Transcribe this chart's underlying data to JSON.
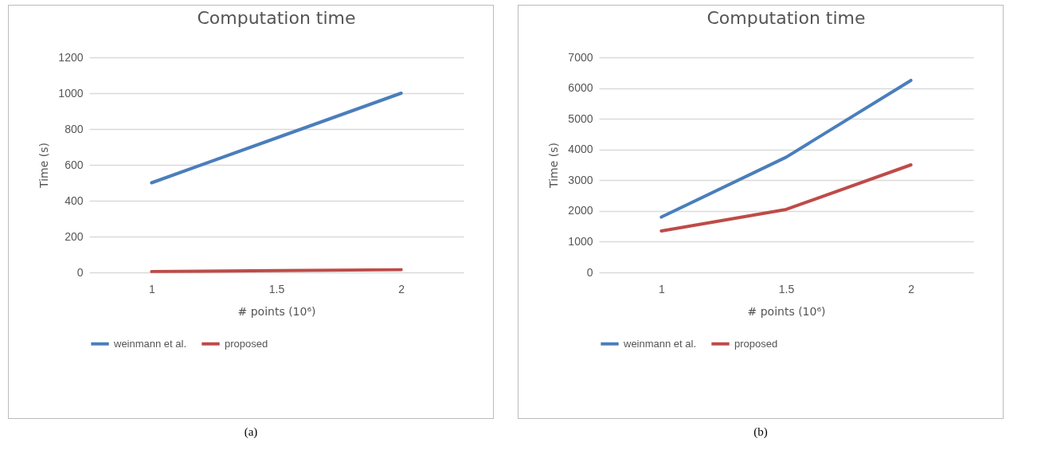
{
  "chart_data": [
    {
      "type": "line",
      "title": "Computation time",
      "xlabel": "# points (10⁶)",
      "ylabel": "Time (s)",
      "categories": [
        "1",
        "1.5",
        "2"
      ],
      "series": [
        {
          "name": "weinmann et al.",
          "color": "#4a7ebb",
          "values": [
            500,
            750,
            1000
          ]
        },
        {
          "name": "proposed",
          "color": "#be4b48",
          "values": [
            5,
            10,
            15
          ]
        }
      ],
      "ylim": [
        0,
        1200
      ],
      "yticks": [
        0,
        200,
        400,
        600,
        800,
        1000,
        1200
      ],
      "grid": "y",
      "legend": "bottom",
      "marker": "none",
      "line_style": "solid",
      "annotations": [
        "(a)"
      ]
    },
    {
      "type": "line",
      "title": "Computation time",
      "xlabel": "# points (10⁶)",
      "ylabel": "Time (s)",
      "categories": [
        "1",
        "1.5",
        "2"
      ],
      "series": [
        {
          "name": "weinmann et al.",
          "color": "#4a7ebb",
          "values": [
            1800,
            3750,
            6250
          ]
        },
        {
          "name": "proposed",
          "color": "#be4b48",
          "values": [
            1350,
            2050,
            3500
          ]
        }
      ],
      "ylim": [
        0,
        7000
      ],
      "yticks": [
        0,
        1000,
        2000,
        3000,
        4000,
        5000,
        6000,
        7000
      ],
      "grid": "y",
      "legend": "bottom",
      "marker": "none",
      "line_style": "solid",
      "annotations": [
        "(b)"
      ]
    }
  ]
}
